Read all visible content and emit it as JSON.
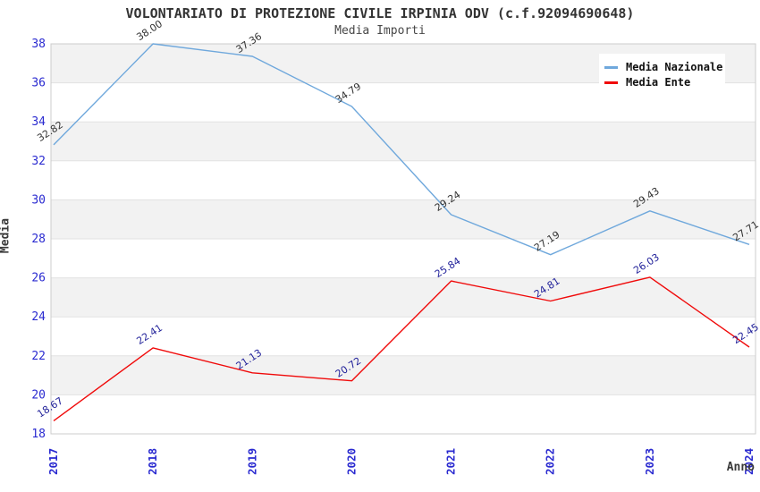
{
  "chart_data": {
    "type": "line",
    "title": "VOLONTARIATO DI PROTEZIONE CIVILE IRPINIA ODV (c.f.92094690648)",
    "subtitle": "Media Importi",
    "xlabel": "Anno",
    "ylabel": "Media",
    "x": [
      2017,
      2018,
      2019,
      2020,
      2021,
      2022,
      2023,
      2024
    ],
    "series": [
      {
        "name": "Media Nazionale",
        "color": "#6fa8dc",
        "label_color": "#333333",
        "values": [
          32.82,
          38.0,
          37.36,
          34.79,
          29.24,
          27.19,
          29.43,
          27.71
        ]
      },
      {
        "name": "Media Ente",
        "color": "#f00a0a",
        "label_color": "#1f1f99",
        "values": [
          18.67,
          22.41,
          21.13,
          20.72,
          25.84,
          24.81,
          26.03,
          22.45
        ]
      }
    ],
    "ylim": [
      18,
      38
    ],
    "ytick_step": 2,
    "yticks": [
      18,
      20,
      22,
      24,
      26,
      28,
      30,
      32,
      34,
      36,
      38
    ],
    "grid": true,
    "legend_position": "top-right",
    "style": {
      "tick_label_color": "#2a2ad0",
      "band_color": "#f2f2f2",
      "grid_color": "#e2e2e2",
      "border_color": "#cccccc",
      "background": "#ffffff"
    }
  }
}
